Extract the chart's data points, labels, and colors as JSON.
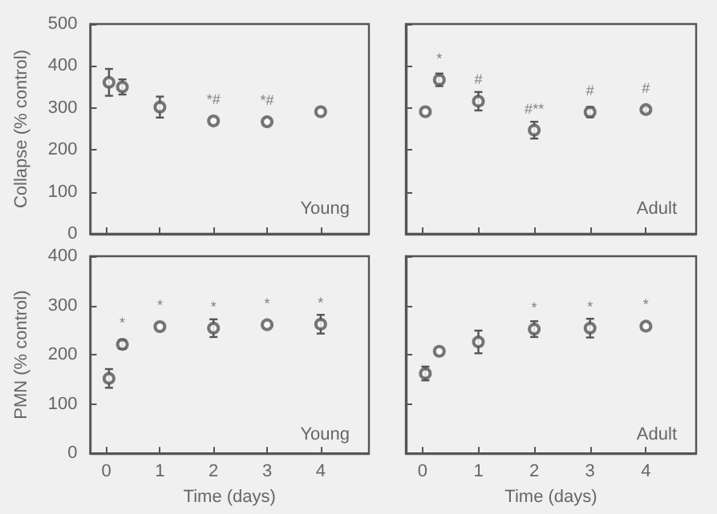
{
  "chart_data": [
    {
      "type": "scatter",
      "ylabel": "Collapse (% control)",
      "x": [
        0.05,
        0.3,
        1,
        2,
        3,
        4
      ],
      "values": [
        361,
        350,
        302,
        269,
        267,
        291
      ],
      "errors": [
        32,
        18,
        25,
        null,
        null,
        null
      ],
      "color": "#555555",
      "marker": "circle",
      "grid": false,
      "tick_labels": "y",
      "xlim": [
        -0.3,
        4.9
      ],
      "xticks": [
        0,
        1,
        2,
        3,
        4
      ],
      "ylim": [
        0,
        500
      ],
      "yticks": [
        0,
        100,
        200,
        300,
        400,
        500
      ],
      "annotations": [
        "Young",
        {
          "text": "*#",
          "x": 2,
          "y": 269
        },
        {
          "text": "*#",
          "x": 3,
          "y": 267
        }
      ]
    },
    {
      "type": "scatter",
      "x": [
        0.05,
        0.3,
        1,
        2,
        3,
        4
      ],
      "values": [
        291,
        367,
        316,
        247,
        290,
        296
      ],
      "errors": [
        null,
        15,
        22,
        20,
        12,
        5
      ],
      "color": "#555555",
      "marker": "circle",
      "grid": false,
      "tick_labels": false,
      "xlim": [
        -0.3,
        4.9
      ],
      "xticks": [
        0,
        1,
        2,
        3,
        4
      ],
      "ylim": [
        0,
        500
      ],
      "yticks": [
        0,
        100,
        200,
        300,
        400,
        500
      ],
      "annotations": [
        "Adult",
        {
          "text": "*",
          "x": 0.3,
          "y": 367
        },
        {
          "text": "#",
          "x": 1,
          "y": 316
        },
        {
          "text": "#**",
          "x": 2,
          "y": 247
        },
        {
          "text": "#",
          "x": 3,
          "y": 290
        },
        {
          "text": "#",
          "x": 4,
          "y": 296
        }
      ]
    },
    {
      "type": "scatter",
      "ylabel": "PMN (% control)",
      "xlabel": "Time (days)",
      "x": [
        0.05,
        0.3,
        1,
        2,
        3,
        4
      ],
      "values": [
        152,
        221,
        257,
        254,
        261,
        262
      ],
      "errors": [
        19,
        9,
        null,
        18,
        null,
        19
      ],
      "color": "#555555",
      "marker": "circle",
      "grid": false,
      "xlim": [
        -0.3,
        4.9
      ],
      "xticks": [
        0,
        1,
        2,
        3,
        4
      ],
      "ylim": [
        0,
        400
      ],
      "yticks": [
        0,
        100,
        200,
        300,
        400
      ],
      "annotations": [
        "Young",
        {
          "text": "*",
          "x": 0.3,
          "y": 221
        },
        {
          "text": "*",
          "x": 1,
          "y": 257
        },
        {
          "text": "*",
          "x": 2,
          "y": 254
        },
        {
          "text": "*",
          "x": 3,
          "y": 261
        },
        {
          "text": "*",
          "x": 4,
          "y": 262
        }
      ]
    },
    {
      "type": "scatter",
      "xlabel": "Time (days)",
      "x": [
        0.05,
        0.3,
        1,
        2,
        3,
        4
      ],
      "values": [
        162,
        207,
        226,
        252,
        254,
        258
      ],
      "errors": [
        14,
        null,
        23,
        16,
        19,
        null
      ],
      "color": "#555555",
      "marker": "circle",
      "grid": false,
      "tick_labels": "x",
      "xlim": [
        -0.3,
        4.9
      ],
      "xticks": [
        0,
        1,
        2,
        3,
        4
      ],
      "ylim": [
        0,
        400
      ],
      "yticks": [
        0,
        100,
        200,
        300,
        400
      ],
      "annotations": [
        "Adult",
        {
          "text": "*",
          "x": 2,
          "y": 252
        },
        {
          "text": "*",
          "x": 3,
          "y": 254
        },
        {
          "text": "*",
          "x": 4,
          "y": 258
        }
      ]
    }
  ]
}
